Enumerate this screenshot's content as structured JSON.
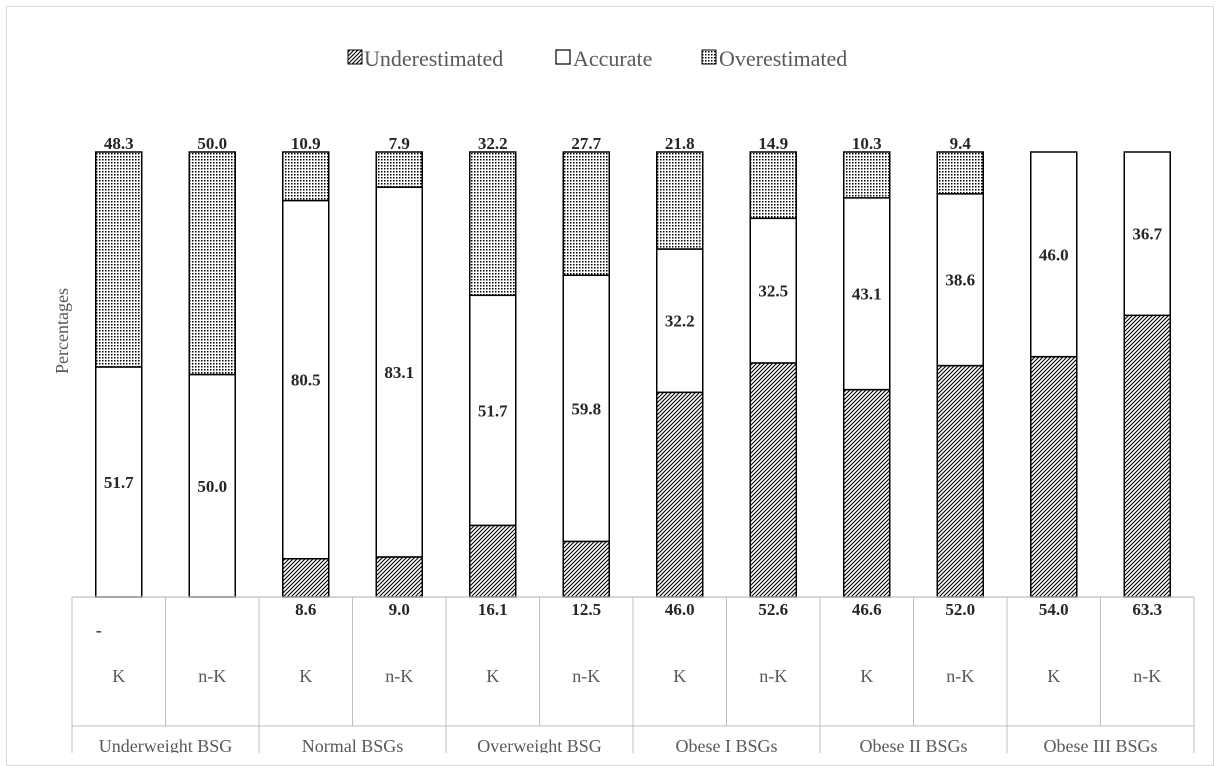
{
  "chart_data": {
    "type": "bar",
    "stacked": true,
    "percent_stacked": true,
    "ylabel": "Percentages",
    "legend_position": "top",
    "grid": false,
    "ylim": [
      0,
      100
    ],
    "categories": [
      {
        "sub": "K",
        "group": "Underweight BSG",
        "group_start": true
      },
      {
        "sub": "n-K",
        "group": "Underweight BSG",
        "group_start": false
      },
      {
        "sub": "K",
        "group": "Normal BSGs",
        "group_start": true
      },
      {
        "sub": "n-K",
        "group": "Normal BSGs",
        "group_start": false
      },
      {
        "sub": "K",
        "group": "Overweight BSG",
        "group_start": true
      },
      {
        "sub": "n-K",
        "group": "Overweight BSG",
        "group_start": false
      },
      {
        "sub": "K",
        "group": "Obese I BSGs",
        "group_start": true
      },
      {
        "sub": "n-K",
        "group": "Obese I BSGs",
        "group_start": false
      },
      {
        "sub": "K",
        "group": "Obese II BSGs",
        "group_start": true
      },
      {
        "sub": "n-K",
        "group": "Obese II BSGs",
        "group_start": false
      },
      {
        "sub": "K",
        "group": "Obese III BSGs",
        "group_start": true
      },
      {
        "sub": "n-K",
        "group": "Obese III BSGs",
        "group_start": false
      }
    ],
    "groups": [
      "Underweight BSG",
      "Normal BSGs",
      "Overweight BSG",
      "Obese I BSGs",
      "Obese II BSGs",
      "Obese III BSGs"
    ],
    "series": [
      {
        "name": "Underestimated",
        "pattern": "diagonal",
        "values": [
          0,
          0,
          8.6,
          9.0,
          16.1,
          12.5,
          46.0,
          52.6,
          46.6,
          52.0,
          54.0,
          63.3
        ],
        "labels": [
          "-",
          "",
          "8.6",
          "9.0",
          "16.1",
          "12.5",
          "46.0",
          "52.6",
          "46.6",
          "52.0",
          "54.0",
          "63.3"
        ]
      },
      {
        "name": "Accurate",
        "pattern": "none",
        "values": [
          51.7,
          50.0,
          80.5,
          83.1,
          51.7,
          59.8,
          32.2,
          32.5,
          43.1,
          38.6,
          46.0,
          36.7
        ],
        "labels": [
          "51.7",
          "50.0",
          "80.5",
          "83.1",
          "51.7",
          "59.8",
          "32.2",
          "32.5",
          "43.1",
          "38.6",
          "46.0",
          "36.7"
        ]
      },
      {
        "name": "Overestimated",
        "pattern": "dots",
        "values": [
          48.3,
          50.0,
          10.9,
          7.9,
          32.2,
          27.7,
          21.8,
          14.9,
          10.3,
          9.4,
          0,
          0
        ],
        "labels": [
          "48.3",
          "50.0",
          "10.9",
          "7.9",
          "32.2",
          "27.7",
          "21.8",
          "14.9",
          "10.3",
          "9.4",
          "",
          ""
        ]
      }
    ]
  }
}
